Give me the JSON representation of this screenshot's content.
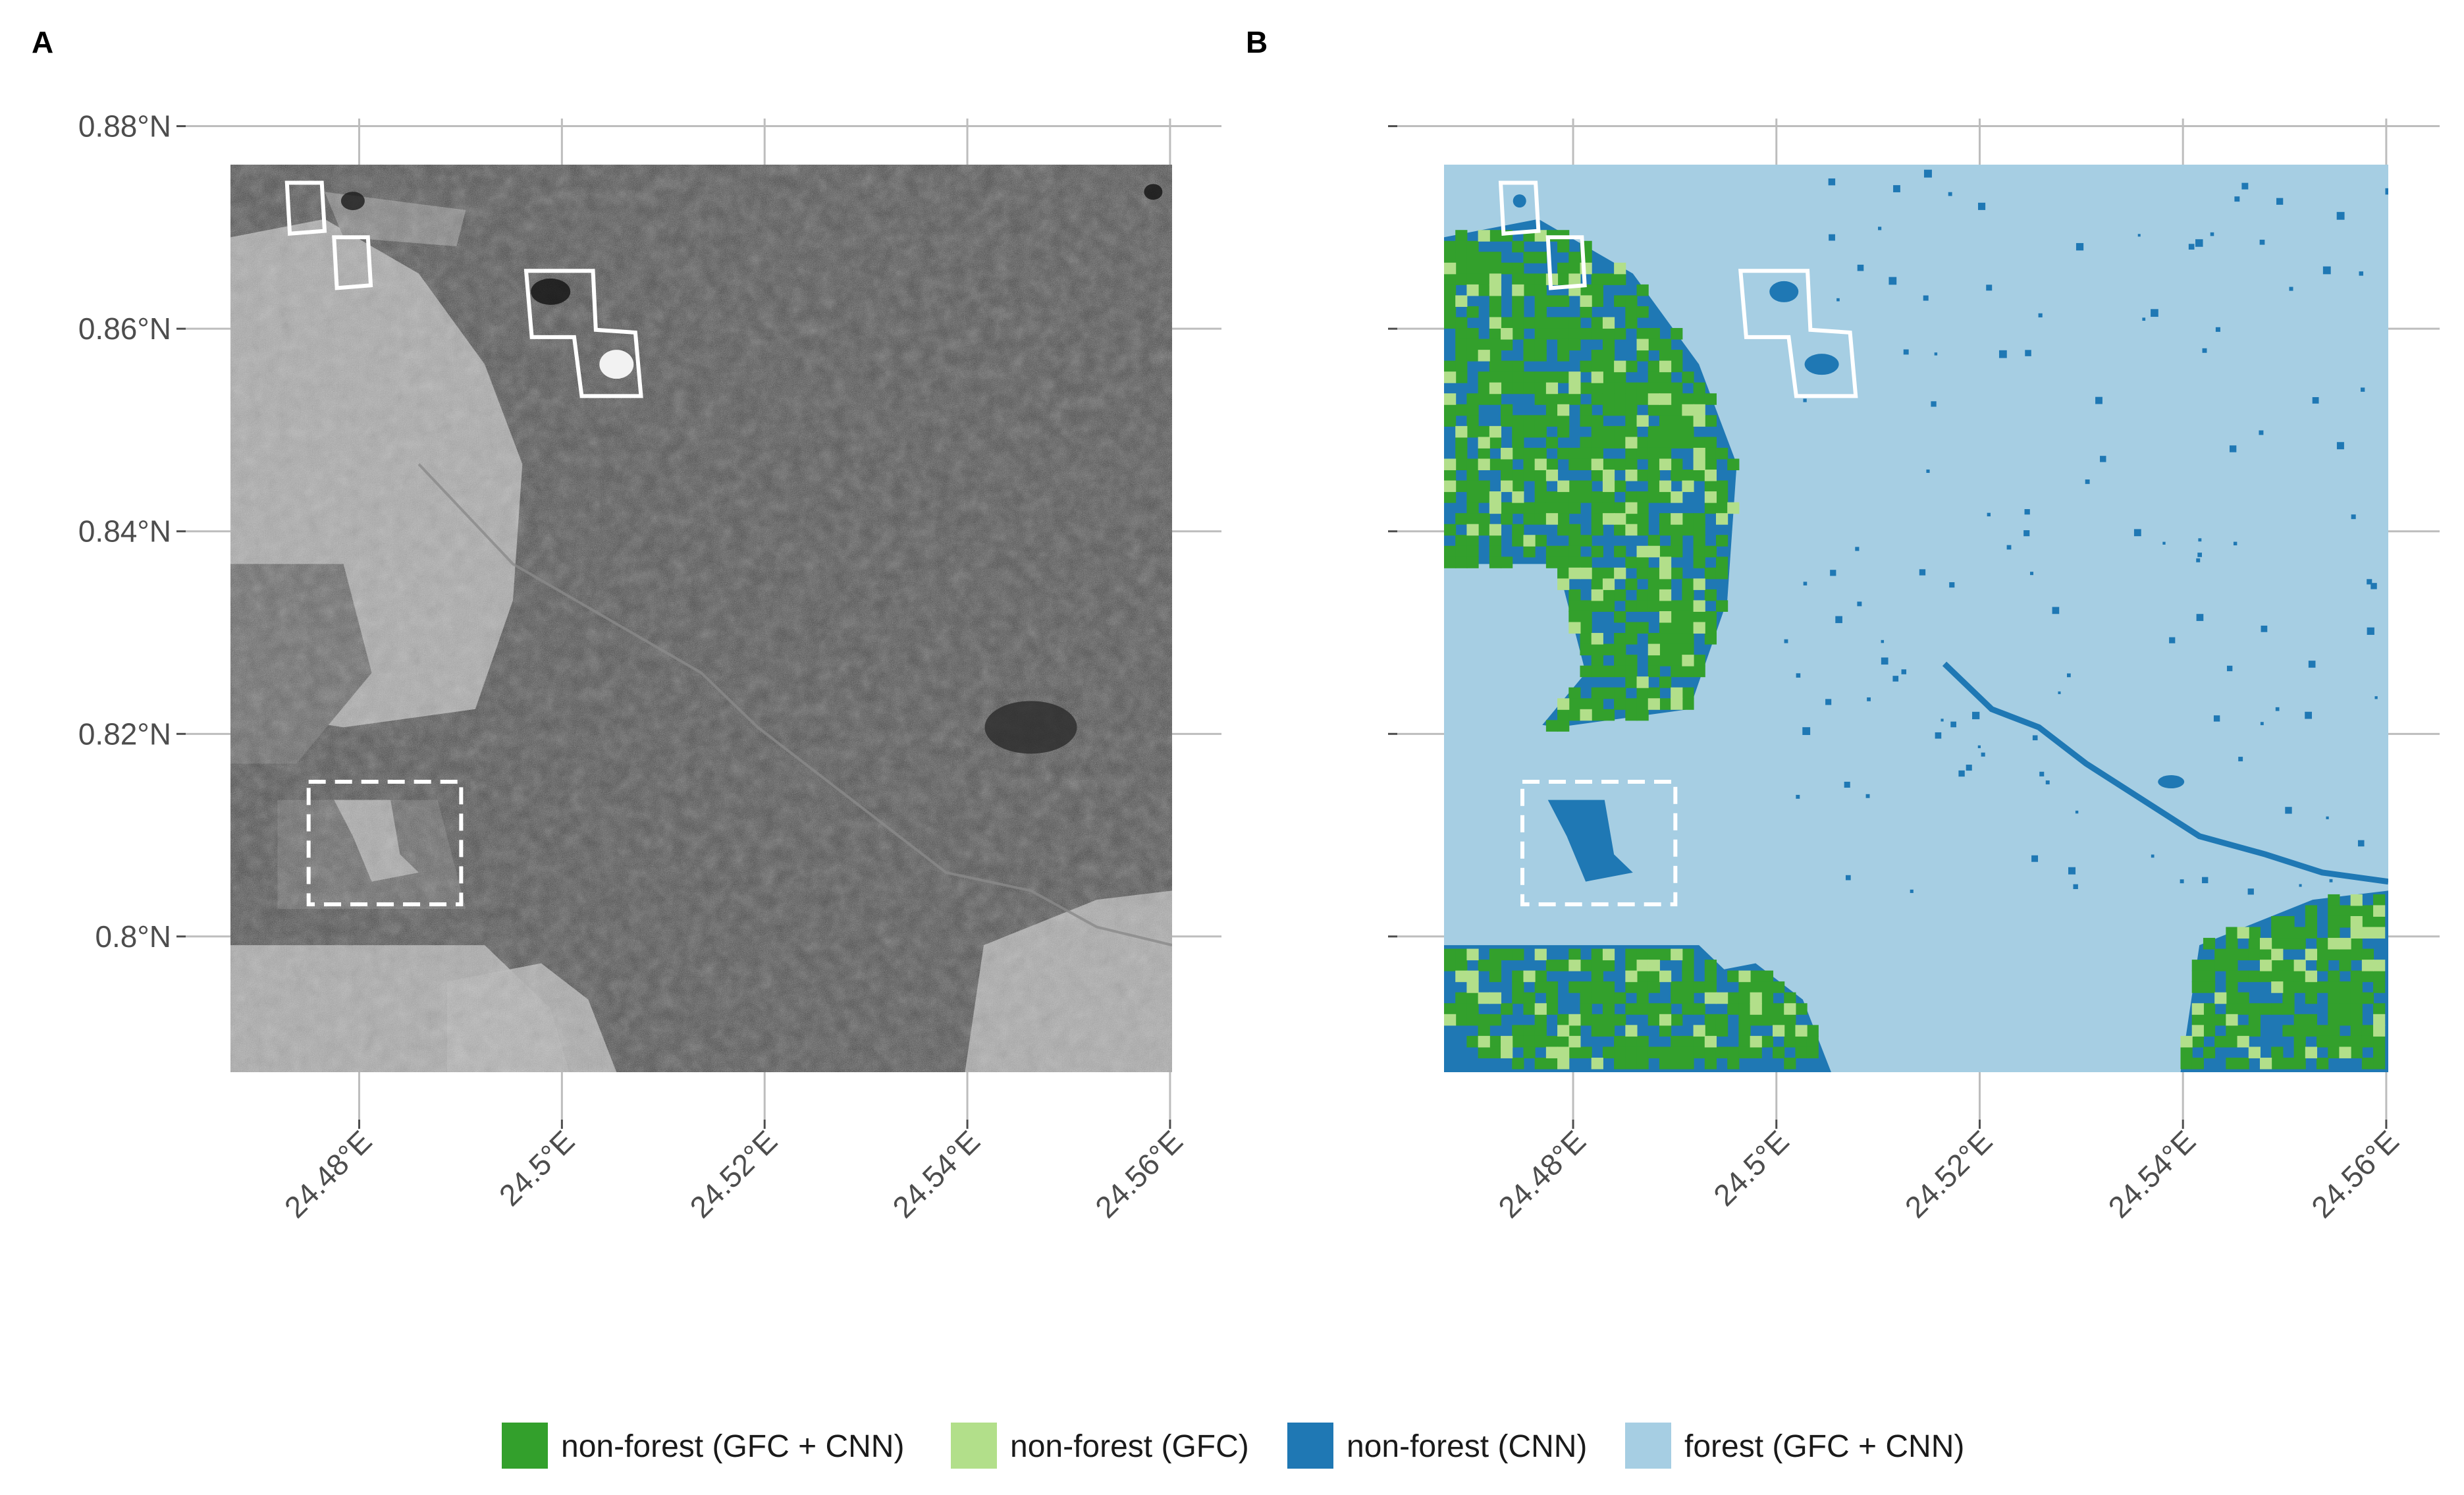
{
  "panels": [
    {
      "label": "A",
      "kind": "sar-image"
    },
    {
      "label": "B",
      "kind": "classification"
    }
  ],
  "axes": {
    "lat_ticks": [
      "0.88°N",
      "0.86°N",
      "0.84°N",
      "0.82°N",
      "0.8°N"
    ],
    "lat_values": [
      0.88,
      0.86,
      0.84,
      0.82,
      0.8
    ],
    "lon_ticks": [
      "24.48°E",
      "24.5°E",
      "24.52°E",
      "24.54°E",
      "24.56°E"
    ],
    "lon_values": [
      24.48,
      24.5,
      24.52,
      24.54,
      24.56
    ],
    "extent": {
      "lon_min": 24.4673,
      "lon_max": 24.5602,
      "lat_min": 0.7866,
      "lat_max": 0.8762
    }
  },
  "legend": [
    {
      "label": "non-forest (GFC + CNN)",
      "color": "#33a02c"
    },
    {
      "label": "non-forest (GFC)",
      "color": "#b2df8a"
    },
    {
      "label": "non-forest (CNN)",
      "color": "#1f78b4"
    },
    {
      "label": "forest (GFC + CNN)",
      "color": "#a6cee3"
    }
  ],
  "colors": {
    "sar_dark": "#3f3f3f",
    "sar_light": "#b5b5b5",
    "grid": "#bdbdbd",
    "box_outline": "#ffffff"
  }
}
